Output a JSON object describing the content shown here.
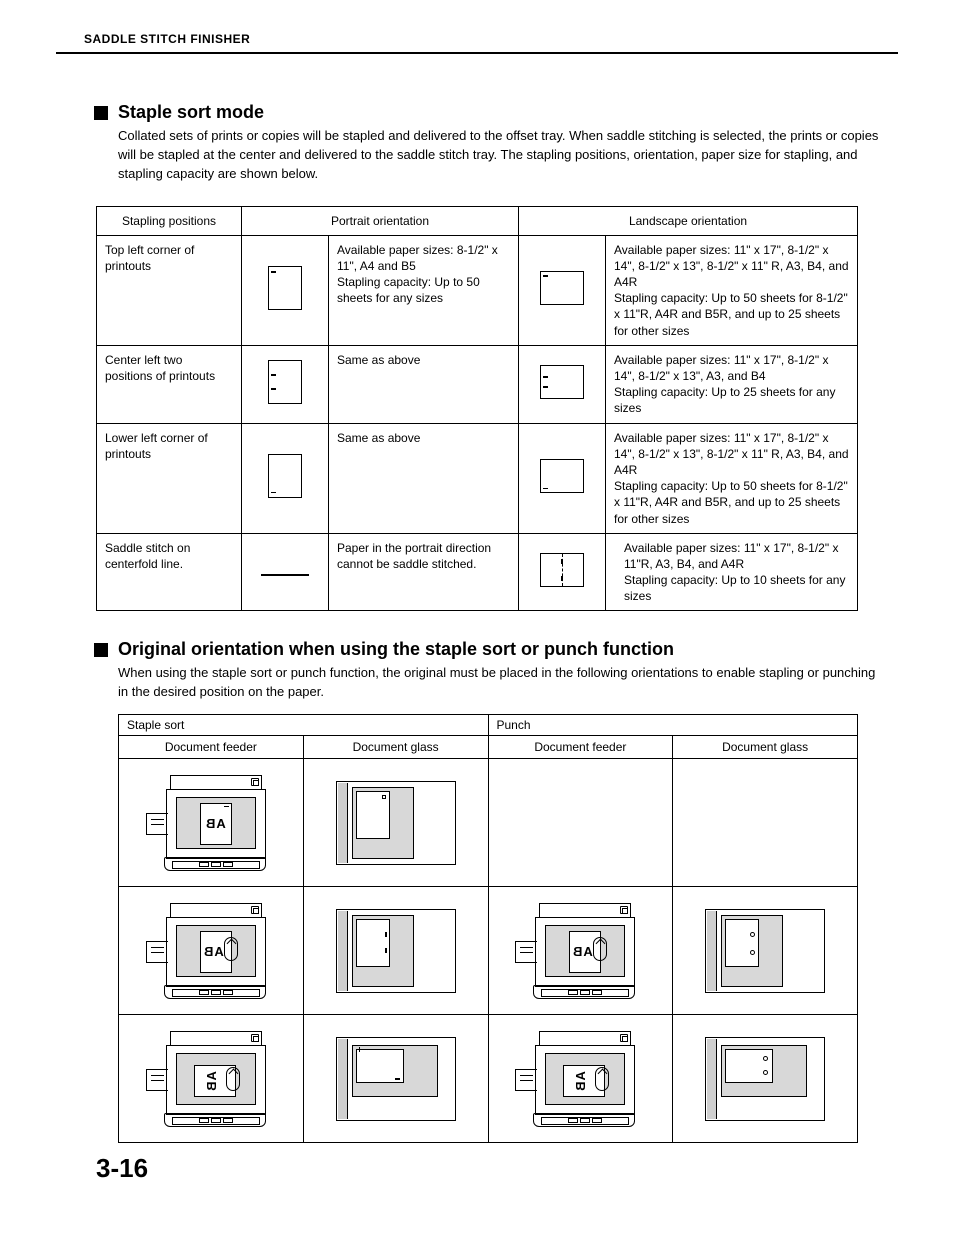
{
  "running_head": "SADDLE STITCH FINISHER",
  "section1": {
    "title": "Staple sort mode",
    "para": "Collated sets of prints or copies will be stapled and delivered to the offset tray. When saddle stitching is selected, the prints or copies will be stapled at the center and delivered to the saddle stitch tray. The stapling positions, orientation, paper size for stapling, and stapling capacity are shown below."
  },
  "table1": {
    "h_pos": "Stapling positions",
    "h_port": "Portrait orientation",
    "h_land": "Landscape orientation",
    "rows": [
      {
        "pos": "Top left corner of printouts",
        "port_txt": "Available paper sizes: 8-1/2\" x 11\", A4 and B5\nStapling capacity: Up to 50 sheets for any sizes",
        "land_txt": "Available paper sizes: 11\" x 17\", 8-1/2\" x 14\", 8-1/2\" x 13\", 8-1/2\" x 11\" R, A3, B4, and A4R\nStapling capacity: Up to 50 sheets for 8-1/2\" x 11\"R, A4R and B5R, and up to 25 sheets for other sizes"
      },
      {
        "pos": "Center left two positions of printouts",
        "port_txt": "Same as above",
        "land_txt": "Available paper sizes: 11\" x 17\", 8-1/2\" x 14\", 8-1/2\" x 13\", A3, and B4\nStapling capacity: Up to 25 sheets for any sizes"
      },
      {
        "pos": "Lower left corner of printouts",
        "port_txt": "Same as above",
        "land_txt": "Available paper sizes: 11\" x 17\", 8-1/2\" x 14\", 8-1/2\" x 13\", 8-1/2\" x 11\" R, A3, B4, and A4R\nStapling capacity: Up to 50 sheets for 8-1/2\" x 11\"R, A4R and B5R, and up to 25 sheets for other sizes"
      },
      {
        "pos": "Saddle stitch on centerfold line.",
        "port_txt": "Paper in the portrait direction cannot be saddle stitched.",
        "land_txt": "Available paper sizes: 11\" x 17\", 8-1/2\" x 11\"R, A3, B4, and A4R\nStapling capacity: Up to 10 sheets for any sizes"
      }
    ]
  },
  "section2": {
    "title": "Original orientation when using the staple sort or punch function",
    "para": "When using the staple sort or punch function, the original must be placed in the following orientations to enable stapling or punching in the desired position on the paper."
  },
  "table2": {
    "h_staple": "Staple sort",
    "h_punch": "Punch",
    "h_feeder": "Document feeder",
    "h_glass": "Document glass"
  },
  "page_number": "3-16",
  "colors": {
    "text": "#000000",
    "bg": "#ffffff",
    "shade": "#d8d8d8",
    "shade2": "#cfcfcf"
  }
}
